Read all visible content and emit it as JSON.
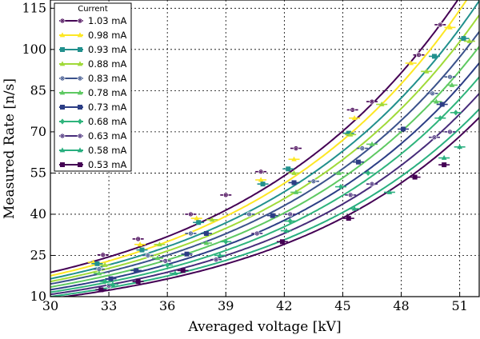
{
  "chart_data": {
    "type": "scatter",
    "xlabel": "Averaged voltage [kV]",
    "ylabel": "Measured Rate [n/s]",
    "xlim": [
      30,
      52
    ],
    "ylim": [
      10,
      118
    ],
    "xticks": [
      "30",
      "33",
      "36",
      "39",
      "42",
      "45",
      "48",
      "51"
    ],
    "xtick_values": [
      30,
      33,
      36,
      39,
      42,
      45,
      48,
      51
    ],
    "yticks": [
      "10",
      "25",
      "40",
      "55",
      "70",
      "85",
      "100",
      "115"
    ],
    "ytick_values": [
      10,
      25,
      40,
      55,
      70,
      85,
      100,
      115
    ],
    "grid": true,
    "legend": {
      "title": "Current",
      "placement": "top-left"
    },
    "series": [
      {
        "name": "1.03 mA",
        "color": "#440154",
        "marker": "circle",
        "fit": {
          "a": 18.8,
          "b": 0.0879
        },
        "points": [
          [
            32.7,
            25.2
          ],
          [
            34.5,
            31.0
          ],
          [
            37.2,
            40.0
          ],
          [
            39.0,
            47.0
          ],
          [
            40.8,
            55.5
          ],
          [
            42.6,
            64.0
          ],
          [
            45.5,
            78.0
          ],
          [
            46.5,
            81.0
          ],
          [
            48.9,
            98.0
          ],
          [
            50.0,
            109.0
          ]
        ]
      },
      {
        "name": "0.98 mA",
        "color": "#fde725",
        "marker": "triangle",
        "fit": {
          "a": 17.6,
          "b": 0.0891
        },
        "points": [
          [
            32.2,
            22.5
          ],
          [
            34.6,
            29.0
          ],
          [
            37.5,
            38.5
          ],
          [
            40.8,
            52.5
          ],
          [
            42.5,
            60.0
          ],
          [
            45.6,
            75.0
          ],
          [
            48.5,
            95.0
          ],
          [
            50.5,
            108.0
          ]
        ]
      },
      {
        "name": "0.93 mA",
        "color": "#21908d",
        "marker": "square",
        "fit": {
          "a": 16.5,
          "b": 0.0893
        },
        "points": [
          [
            32.4,
            22.0
          ],
          [
            34.7,
            27.0
          ],
          [
            37.6,
            37.0
          ],
          [
            40.9,
            51.0
          ],
          [
            42.2,
            56.5
          ],
          [
            45.3,
            69.5
          ],
          [
            49.7,
            97.5
          ],
          [
            51.2,
            104.0
          ]
        ]
      },
      {
        "name": "0.88 mA",
        "color": "#a0da39",
        "marker": "triangle",
        "fit": {
          "a": 15.5,
          "b": 0.0901
        },
        "points": [
          [
            32.8,
            21.5
          ],
          [
            35.6,
            29.0
          ],
          [
            38.3,
            38.0
          ],
          [
            42.5,
            55.0
          ],
          [
            45.4,
            69.0
          ],
          [
            47.0,
            80.0
          ],
          [
            49.3,
            92.0
          ],
          [
            51.5,
            103.0
          ]
        ]
      },
      {
        "name": "0.83 mA",
        "color": "#3b528b",
        "marker": "circle",
        "fit": {
          "a": 14.6,
          "b": 0.0903
        },
        "points": [
          [
            32.5,
            20.0
          ],
          [
            35.0,
            25.0
          ],
          [
            37.2,
            33.0
          ],
          [
            40.2,
            40.0
          ],
          [
            43.5,
            52.0
          ],
          [
            46.0,
            64.0
          ],
          [
            49.6,
            84.0
          ],
          [
            50.5,
            90.0
          ]
        ]
      },
      {
        "name": "0.78 mA",
        "color": "#5ec962",
        "marker": "triangle",
        "fit": {
          "a": 13.5,
          "b": 0.0915
        },
        "points": [
          [
            32.5,
            18.5
          ],
          [
            35.5,
            24.0
          ],
          [
            38.0,
            29.5
          ],
          [
            42.6,
            48.0
          ],
          [
            44.8,
            55.0
          ],
          [
            46.5,
            65.5
          ],
          [
            49.8,
            81.0
          ],
          [
            50.6,
            87.0
          ]
        ]
      },
      {
        "name": "0.73 mA",
        "color": "#2c3e85",
        "marker": "square",
        "fit": {
          "a": 12.5,
          "b": 0.0922
        },
        "points": [
          [
            33.1,
            16.5
          ],
          [
            34.4,
            19.5
          ],
          [
            37.0,
            25.5
          ],
          [
            38.0,
            33.0
          ],
          [
            41.4,
            39.5
          ],
          [
            42.5,
            51.5
          ],
          [
            45.8,
            59.0
          ],
          [
            48.1,
            71.0
          ],
          [
            50.1,
            80.0
          ]
        ]
      },
      {
        "name": "0.68 mA",
        "color": "#2fb47c",
        "marker": "diamond",
        "fit": {
          "a": 11.6,
          "b": 0.0931
        },
        "points": [
          [
            32.8,
            15.5
          ],
          [
            36.0,
            21.5
          ],
          [
            39.0,
            30.0
          ],
          [
            42.3,
            37.5
          ],
          [
            44.9,
            50.0
          ],
          [
            46.3,
            55.0
          ],
          [
            50.0,
            75.0
          ],
          [
            50.8,
            77.0
          ]
        ]
      },
      {
        "name": "0.63 mA",
        "color": "#472c7a",
        "marker": "circle",
        "fit": {
          "a": 10.8,
          "b": 0.0932
        },
        "points": [
          [
            33.0,
            14.0
          ],
          [
            35.9,
            23.0
          ],
          [
            38.5,
            23.5
          ],
          [
            40.6,
            33.0
          ],
          [
            42.3,
            40.0
          ],
          [
            45.4,
            47.0
          ],
          [
            46.5,
            51.0
          ],
          [
            49.7,
            68.0
          ],
          [
            50.5,
            70.0
          ]
        ]
      },
      {
        "name": "0.58 mA",
        "color": "#29af7f",
        "marker": "triangle",
        "fit": {
          "a": 10.0,
          "b": 0.0935
        },
        "points": [
          [
            33.2,
            14.5
          ],
          [
            36.4,
            18.5
          ],
          [
            38.7,
            25.0
          ],
          [
            42.1,
            34.0
          ],
          [
            45.6,
            42.0
          ],
          [
            47.4,
            48.0
          ],
          [
            50.2,
            60.5
          ],
          [
            51.0,
            64.5
          ]
        ]
      },
      {
        "name": "0.53 mA",
        "color": "#440154",
        "marker": "square",
        "fit": {
          "a": 9.3,
          "b": 0.095
        },
        "points": [
          [
            32.6,
            12.5
          ],
          [
            34.5,
            15.5
          ],
          [
            36.8,
            19.5
          ],
          [
            41.9,
            30.0
          ],
          [
            45.3,
            38.5
          ],
          [
            48.7,
            53.5
          ],
          [
            50.2,
            58.0
          ]
        ]
      }
    ]
  }
}
